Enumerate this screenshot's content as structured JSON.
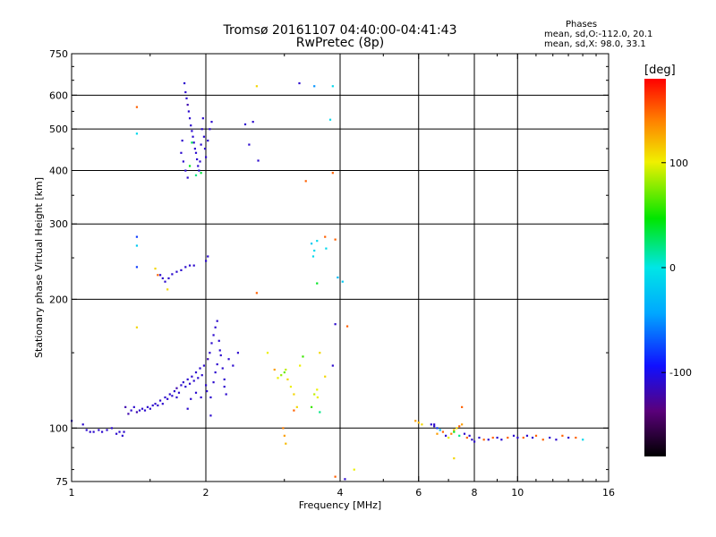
{
  "header": {
    "title_line1": "Tromsø 20161107 04:40:00-04:41:43",
    "title_line2": "RwPretec (8p)",
    "stats_title": "Phases",
    "stats_o": "mean, sd,O:-112.0, 20.1",
    "stats_x": "mean, sd,X:  98.0, 33.1"
  },
  "colorbar": {
    "label": "[deg]",
    "ticks": [
      {
        "value": 100,
        "label": "100"
      },
      {
        "value": 0,
        "label": "0"
      },
      {
        "value": -100,
        "label": "-100"
      }
    ],
    "range": [
      -180,
      180
    ]
  },
  "chart_data": {
    "type": "scatter",
    "xlabel": "Frequency [MHz]",
    "ylabel": "Stationary phase Virtual Height [km]",
    "xscale": "log",
    "yscale": "log",
    "xlim": [
      1,
      16
    ],
    "ylim": [
      75,
      750
    ],
    "xticks": [
      {
        "value": 1,
        "label": "1"
      },
      {
        "value": 2,
        "label": "2"
      },
      {
        "value": 4,
        "label": "4"
      },
      {
        "value": 6,
        "label": "6"
      },
      {
        "value": 8,
        "label": "8"
      },
      {
        "value": 10,
        "label": "10"
      },
      {
        "value": 16,
        "label": "16"
      }
    ],
    "yticks": [
      {
        "value": 75,
        "label": "75"
      },
      {
        "value": 100,
        "label": "100"
      },
      {
        "value": 200,
        "label": "200"
      },
      {
        "value": 300,
        "label": "300"
      },
      {
        "value": 400,
        "label": "400"
      },
      {
        "value": 500,
        "label": "500"
      },
      {
        "value": 600,
        "label": "600"
      },
      {
        "value": 750,
        "label": "750"
      }
    ],
    "gridlines_x": [
      2,
      4,
      6,
      8,
      10
    ],
    "gridlines_y": [
      100,
      200,
      300,
      400,
      500,
      600
    ],
    "points": [
      [
        1.0,
        104,
        -110
      ],
      [
        1.06,
        102,
        -110
      ],
      [
        1.08,
        99,
        -110
      ],
      [
        1.1,
        98,
        -110
      ],
      [
        1.12,
        98,
        -110
      ],
      [
        1.15,
        99,
        -110
      ],
      [
        1.17,
        98,
        -110
      ],
      [
        1.2,
        99,
        -110
      ],
      [
        1.23,
        100,
        -110
      ],
      [
        1.26,
        97,
        -110
      ],
      [
        1.28,
        98,
        -110
      ],
      [
        1.3,
        96,
        -110
      ],
      [
        1.31,
        98,
        -110
      ],
      [
        1.32,
        112,
        -120
      ],
      [
        1.34,
        108,
        -120
      ],
      [
        1.36,
        110,
        -110
      ],
      [
        1.38,
        112,
        -110
      ],
      [
        1.4,
        109,
        -120
      ],
      [
        1.42,
        110,
        -110
      ],
      [
        1.44,
        111,
        -110
      ],
      [
        1.46,
        110,
        -110
      ],
      [
        1.48,
        112,
        -110
      ],
      [
        1.5,
        111,
        -110
      ],
      [
        1.52,
        113,
        -110
      ],
      [
        1.54,
        114,
        -110
      ],
      [
        1.56,
        113,
        -110
      ],
      [
        1.58,
        116,
        -110
      ],
      [
        1.6,
        114,
        -110
      ],
      [
        1.62,
        118,
        -110
      ],
      [
        1.64,
        117,
        -110
      ],
      [
        1.66,
        120,
        -110
      ],
      [
        1.68,
        119,
        -110
      ],
      [
        1.7,
        122,
        -110
      ],
      [
        1.72,
        124,
        -120
      ],
      [
        1.74,
        121,
        -110
      ],
      [
        1.76,
        126,
        -110
      ],
      [
        1.78,
        128,
        -110
      ],
      [
        1.8,
        125,
        -110
      ],
      [
        1.82,
        130,
        -110
      ],
      [
        1.84,
        127,
        -110
      ],
      [
        1.86,
        132,
        -110
      ],
      [
        1.88,
        129,
        -110
      ],
      [
        1.9,
        135,
        -110
      ],
      [
        1.92,
        131,
        -110
      ],
      [
        1.94,
        138,
        -110
      ],
      [
        1.96,
        133,
        -110
      ],
      [
        1.98,
        140,
        -110
      ],
      [
        2.0,
        126,
        -110
      ],
      [
        2.02,
        145,
        -120
      ],
      [
        2.04,
        150,
        -110
      ],
      [
        2.06,
        158,
        -110
      ],
      [
        2.08,
        165,
        -110
      ],
      [
        2.1,
        172,
        -110
      ],
      [
        2.12,
        178,
        -110
      ],
      [
        2.14,
        160,
        -110
      ],
      [
        2.16,
        148,
        -110
      ],
      [
        2.18,
        138,
        -110
      ],
      [
        2.2,
        130,
        -110
      ],
      [
        1.82,
        111,
        -110
      ],
      [
        1.85,
        117,
        -110
      ],
      [
        1.9,
        121,
        -110
      ],
      [
        1.95,
        118,
        -110
      ],
      [
        2.01,
        122,
        -110
      ],
      [
        2.05,
        118,
        -110
      ],
      [
        2.08,
        128,
        -110
      ],
      [
        2.1,
        135,
        -110
      ],
      [
        2.12,
        141,
        -110
      ],
      [
        2.15,
        152,
        -110
      ],
      [
        2.2,
        125,
        -110
      ],
      [
        2.22,
        120,
        -110
      ],
      [
        2.25,
        145,
        -110
      ],
      [
        2.3,
        140,
        -110
      ],
      [
        2.36,
        150,
        -110
      ],
      [
        1.79,
        640,
        -110
      ],
      [
        1.8,
        610,
        -110
      ],
      [
        1.81,
        590,
        -110
      ],
      [
        1.82,
        570,
        -120
      ],
      [
        1.83,
        550,
        -110
      ],
      [
        1.84,
        530,
        -110
      ],
      [
        1.85,
        510,
        -110
      ],
      [
        1.86,
        495,
        -110
      ],
      [
        1.87,
        480,
        -110
      ],
      [
        1.88,
        465,
        -110
      ],
      [
        1.89,
        450,
        -110
      ],
      [
        1.9,
        440,
        -110
      ],
      [
        1.91,
        425,
        -110
      ],
      [
        1.92,
        410,
        -110
      ],
      [
        1.93,
        400,
        -110
      ],
      [
        1.94,
        420,
        -110
      ],
      [
        1.95,
        460,
        -110
      ],
      [
        1.96,
        500,
        -110
      ],
      [
        1.97,
        530,
        -110
      ],
      [
        1.98,
        480,
        -110
      ],
      [
        1.99,
        450,
        -110
      ],
      [
        2.0,
        430,
        -110
      ],
      [
        2.02,
        470,
        -110
      ],
      [
        2.04,
        500,
        -110
      ],
      [
        2.06,
        520,
        -110
      ],
      [
        1.84,
        410,
        40
      ],
      [
        1.86,
        465,
        30
      ],
      [
        1.9,
        390,
        20
      ],
      [
        1.95,
        395,
        35
      ],
      [
        1.76,
        440,
        -110
      ],
      [
        1.77,
        470,
        -110
      ],
      [
        1.78,
        420,
        -110
      ],
      [
        1.8,
        400,
        -110
      ],
      [
        1.82,
        385,
        -110
      ],
      [
        1.4,
        563,
        150
      ],
      [
        1.4,
        488,
        -10
      ],
      [
        1.4,
        280,
        -80
      ],
      [
        1.4,
        267,
        -20
      ],
      [
        1.4,
        238,
        -80
      ],
      [
        1.58,
        228,
        -110
      ],
      [
        1.6,
        224,
        -110
      ],
      [
        1.62,
        220,
        -110
      ],
      [
        1.54,
        236,
        110
      ],
      [
        1.56,
        228,
        150
      ],
      [
        1.64,
        211,
        110
      ],
      [
        1.65,
        224,
        -110
      ],
      [
        1.68,
        229,
        -110
      ],
      [
        1.72,
        232,
        -110
      ],
      [
        1.76,
        234,
        -110
      ],
      [
        1.8,
        238,
        -110
      ],
      [
        1.84,
        240,
        -110
      ],
      [
        1.88,
        240,
        -110
      ],
      [
        2.0,
        246,
        -110
      ],
      [
        2.02,
        252,
        -110
      ],
      [
        1.4,
        172,
        110
      ],
      [
        1.72,
        118,
        -110
      ],
      [
        2.05,
        107,
        -110
      ],
      [
        2.45,
        513,
        -110
      ],
      [
        2.5,
        460,
        -110
      ],
      [
        2.55,
        520,
        -110
      ],
      [
        2.62,
        422,
        -110
      ],
      [
        2.6,
        630,
        110
      ],
      [
        2.6,
        207,
        150
      ],
      [
        3.24,
        640,
        -110
      ],
      [
        3.5,
        630,
        -50
      ],
      [
        3.85,
        630,
        -10
      ],
      [
        3.8,
        526,
        -10
      ],
      [
        3.85,
        395,
        150
      ],
      [
        3.35,
        378,
        150
      ],
      [
        3.7,
        280,
        150
      ],
      [
        3.72,
        263,
        -10
      ],
      [
        3.5,
        260,
        -10
      ],
      [
        3.45,
        270,
        -20
      ],
      [
        3.48,
        252,
        -10
      ],
      [
        3.55,
        274,
        -10
      ],
      [
        3.55,
        218,
        40
      ],
      [
        3.9,
        276,
        150
      ],
      [
        3.95,
        225,
        -30
      ],
      [
        4.05,
        220,
        -20
      ],
      [
        3.9,
        175,
        -110
      ],
      [
        4.15,
        173,
        150
      ],
      [
        3.85,
        140,
        -110
      ],
      [
        3.6,
        150,
        110
      ],
      [
        3.7,
        132,
        110
      ],
      [
        3.55,
        123,
        100
      ],
      [
        3.5,
        120,
        90
      ],
      [
        3.56,
        118,
        100
      ],
      [
        3.45,
        112,
        60
      ],
      [
        3.6,
        109,
        20
      ],
      [
        2.85,
        137,
        130
      ],
      [
        2.9,
        131,
        100
      ],
      [
        2.95,
        133,
        80
      ],
      [
        3.0,
        135,
        70
      ],
      [
        3.02,
        137,
        90
      ],
      [
        3.05,
        130,
        110
      ],
      [
        3.1,
        125,
        100
      ],
      [
        3.15,
        120,
        110
      ],
      [
        3.15,
        110,
        150
      ],
      [
        2.98,
        100,
        140
      ],
      [
        3.0,
        96,
        130
      ],
      [
        3.02,
        92,
        120
      ],
      [
        3.2,
        112,
        110
      ],
      [
        3.25,
        140,
        100
      ],
      [
        3.3,
        147,
        60
      ],
      [
        2.75,
        150,
        100
      ],
      [
        3.9,
        77,
        150
      ],
      [
        4.1,
        76,
        -110
      ],
      [
        4.3,
        80,
        100
      ],
      [
        5.9,
        104,
        130
      ],
      [
        6.0,
        103,
        120
      ],
      [
        6.1,
        102,
        110
      ],
      [
        6.4,
        102,
        -110
      ],
      [
        6.5,
        101,
        -110
      ],
      [
        6.6,
        100,
        -80
      ],
      [
        6.7,
        99,
        -30
      ],
      [
        6.8,
        98,
        150
      ],
      [
        6.9,
        96,
        -110
      ],
      [
        7.0,
        95,
        100
      ],
      [
        7.1,
        97,
        140
      ],
      [
        7.2,
        99,
        120
      ],
      [
        7.3,
        100,
        110
      ],
      [
        7.4,
        101,
        150
      ],
      [
        7.5,
        102,
        130
      ],
      [
        7.6,
        97,
        -110
      ],
      [
        7.7,
        95,
        150
      ],
      [
        7.8,
        96,
        -110
      ],
      [
        7.9,
        94,
        -110
      ],
      [
        8.0,
        93,
        -110
      ],
      [
        8.2,
        95,
        -110
      ],
      [
        8.4,
        94,
        150
      ],
      [
        8.6,
        94,
        -110
      ],
      [
        8.8,
        95,
        150
      ],
      [
        9.0,
        95,
        -110
      ],
      [
        9.2,
        94,
        -110
      ],
      [
        9.5,
        95,
        150
      ],
      [
        9.8,
        96,
        -110
      ],
      [
        10.0,
        95,
        -110
      ],
      [
        10.3,
        95,
        150
      ],
      [
        10.5,
        96,
        -110
      ],
      [
        10.8,
        95,
        -110
      ],
      [
        11.0,
        96,
        150
      ],
      [
        11.4,
        94,
        150
      ],
      [
        11.8,
        95,
        -110
      ],
      [
        12.2,
        94,
        -110
      ],
      [
        12.6,
        96,
        150
      ],
      [
        13.0,
        95,
        -110
      ],
      [
        13.5,
        95,
        150
      ],
      [
        14.0,
        94,
        -10
      ],
      [
        7.2,
        85,
        110
      ],
      [
        7.5,
        112,
        150
      ],
      [
        7.2,
        98,
        40
      ],
      [
        7.4,
        96,
        20
      ],
      [
        6.5,
        102,
        -110
      ],
      [
        6.6,
        97,
        130
      ]
    ]
  }
}
